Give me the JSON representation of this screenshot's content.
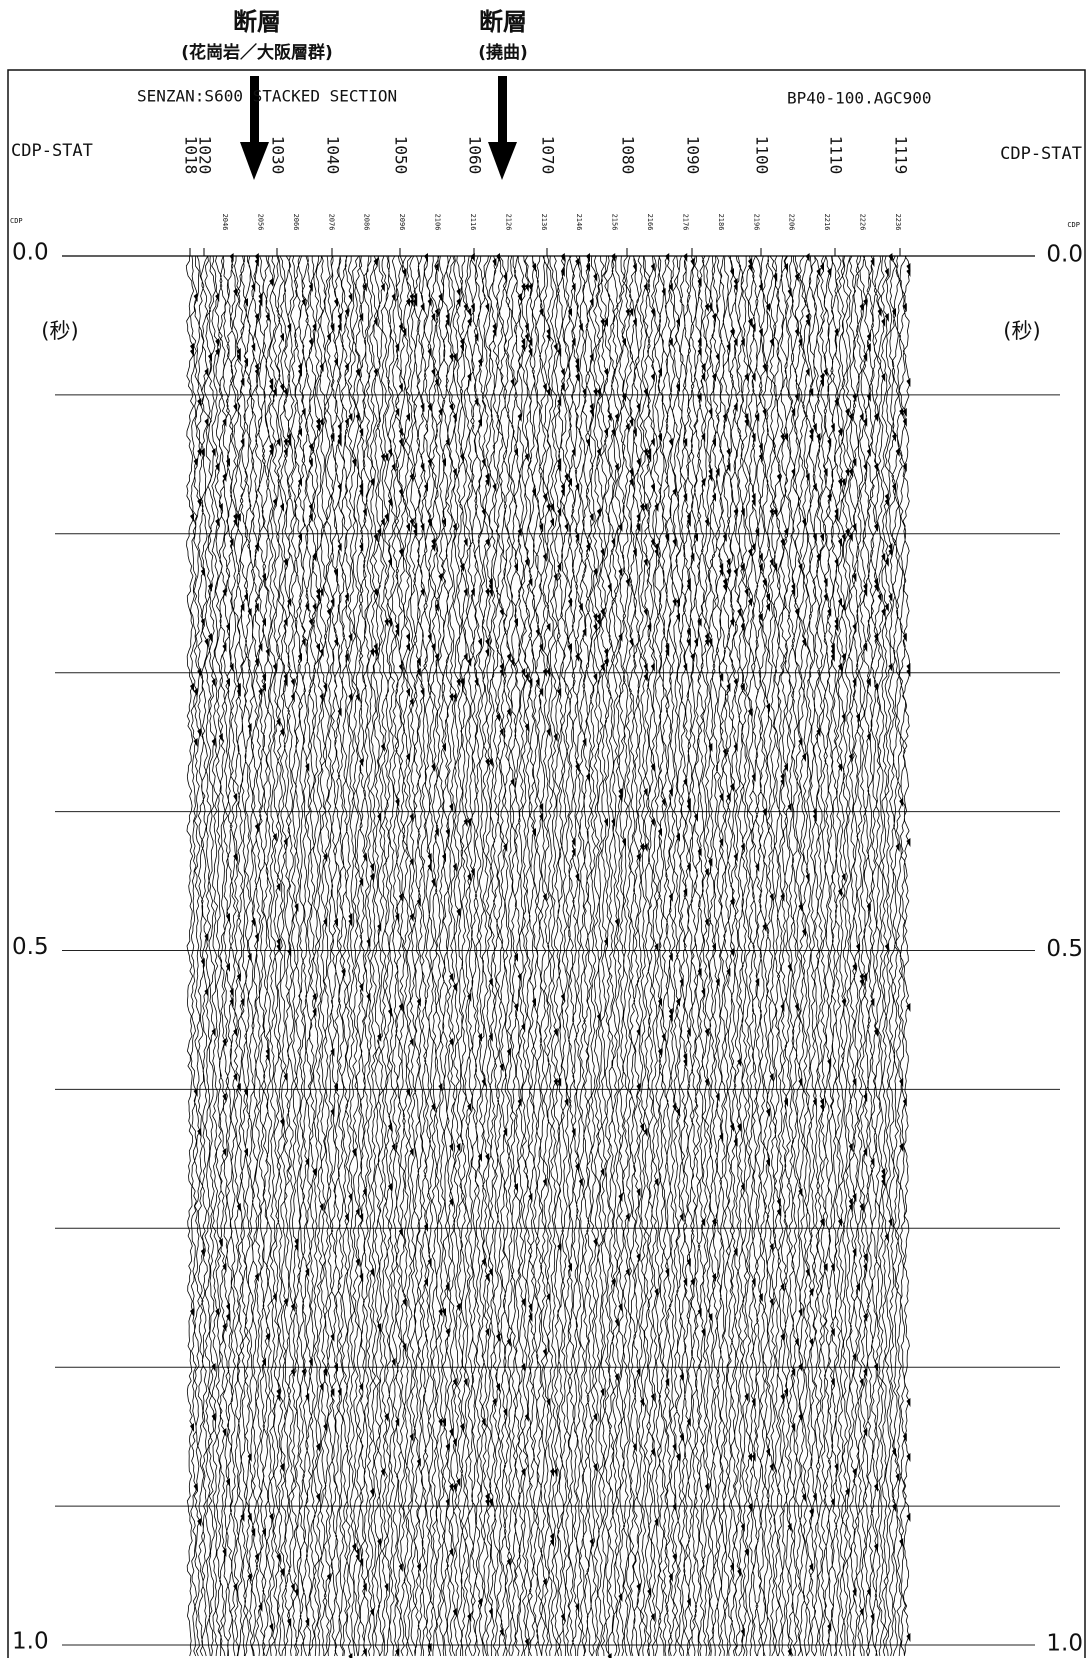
{
  "annotations": [
    {
      "title": "断層",
      "subtitle": "(花崗岩／大阪層群)"
    },
    {
      "title": "断層",
      "subtitle": "(撓曲)"
    }
  ],
  "header": {
    "title": "SENZAN:S600 STACKED SECTION",
    "processing": "BP40-100.AGC900"
  },
  "cdp_stat": {
    "label": "CDP-STAT",
    "values": [
      "1018",
      "1020",
      "1030",
      "1040",
      "1050",
      "1060",
      "1070",
      "1080",
      "1090",
      "1100",
      "1110",
      "1119"
    ]
  },
  "cdp": {
    "label": "CDP",
    "values": [
      "2046",
      "2056",
      "2066",
      "2076",
      "2086",
      "2096",
      "2106",
      "2116",
      "2126",
      "2136",
      "2146",
      "2156",
      "2166",
      "2176",
      "2186",
      "2196",
      "2206",
      "2216",
      "2226",
      "2236"
    ]
  },
  "time_axis": {
    "unit": "(秒)",
    "ticks": [
      "0.0",
      "0.5",
      "1.0"
    ]
  }
}
